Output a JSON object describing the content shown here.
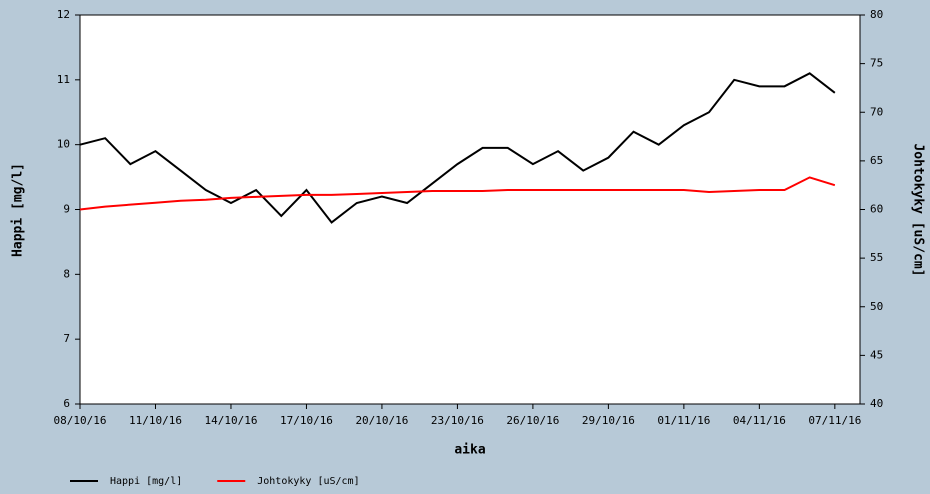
{
  "chart_data": {
    "type": "line",
    "x_label": "aika",
    "y_label": "Happi [mg/l]",
    "y2_label": "Johtokyky [uS/cm]",
    "x": [
      "2016-10-08",
      "2016-10-09",
      "2016-10-10",
      "2016-10-11",
      "2016-10-12",
      "2016-10-13",
      "2016-10-14",
      "2016-10-15",
      "2016-10-16",
      "2016-10-17",
      "2016-10-18",
      "2016-10-19",
      "2016-10-20",
      "2016-10-21",
      "2016-10-22",
      "2016-10-23",
      "2016-10-24",
      "2016-10-25",
      "2016-10-26",
      "2016-10-27",
      "2016-10-28",
      "2016-10-29",
      "2016-10-30",
      "2016-10-31",
      "2016-11-01",
      "2016-11-02",
      "2016-11-03",
      "2016-11-04",
      "2016-11-05",
      "2016-11-06",
      "2016-11-07"
    ],
    "series": [
      {
        "name": "Happi [mg/l]",
        "color": "#000000",
        "axis": "y",
        "values": [
          10.0,
          10.1,
          9.7,
          9.9,
          9.6,
          9.3,
          9.1,
          9.3,
          8.9,
          9.3,
          8.8,
          9.1,
          9.2,
          9.1,
          9.4,
          9.7,
          9.95,
          9.95,
          9.7,
          9.9,
          9.6,
          9.8,
          10.2,
          10.0,
          10.3,
          10.5,
          11.0,
          10.9,
          10.9,
          11.1,
          10.8
        ]
      },
      {
        "name": "Johtokyky [uS/cm]",
        "color": "#ff0000",
        "axis": "y2",
        "values": [
          60,
          60.3,
          60.5,
          60.7,
          60.9,
          61,
          61.2,
          61.3,
          61.4,
          61.5,
          61.5,
          61.6,
          61.7,
          61.8,
          61.9,
          61.9,
          61.9,
          62,
          62,
          62,
          62,
          62,
          62,
          62,
          62,
          61.8,
          61.9,
          62,
          62,
          63.3,
          62.5
        ]
      }
    ],
    "xlim": [
      "2016-10-08",
      "2016-11-08"
    ],
    "xticks": [
      {
        "value": "2016-10-08",
        "label": "08/10/16"
      },
      {
        "value": "2016-10-11",
        "label": "11/10/16"
      },
      {
        "value": "2016-10-14",
        "label": "14/10/16"
      },
      {
        "value": "2016-10-17",
        "label": "17/10/16"
      },
      {
        "value": "2016-10-20",
        "label": "20/10/16"
      },
      {
        "value": "2016-10-23",
        "label": "23/10/16"
      },
      {
        "value": "2016-10-26",
        "label": "26/10/16"
      },
      {
        "value": "2016-10-29",
        "label": "29/10/16"
      },
      {
        "value": "2016-11-01",
        "label": "01/11/16"
      },
      {
        "value": "2016-11-04",
        "label": "04/11/16"
      },
      {
        "value": "2016-11-07",
        "label": "07/11/16"
      }
    ],
    "ylim": [
      6,
      12
    ],
    "yticks": [
      6,
      7,
      8,
      9,
      10,
      11,
      12
    ],
    "y2lim": [
      40,
      80
    ],
    "y2ticks": [
      40,
      45,
      50,
      55,
      60,
      65,
      70,
      75,
      80
    ],
    "legend": "bottom-left"
  }
}
